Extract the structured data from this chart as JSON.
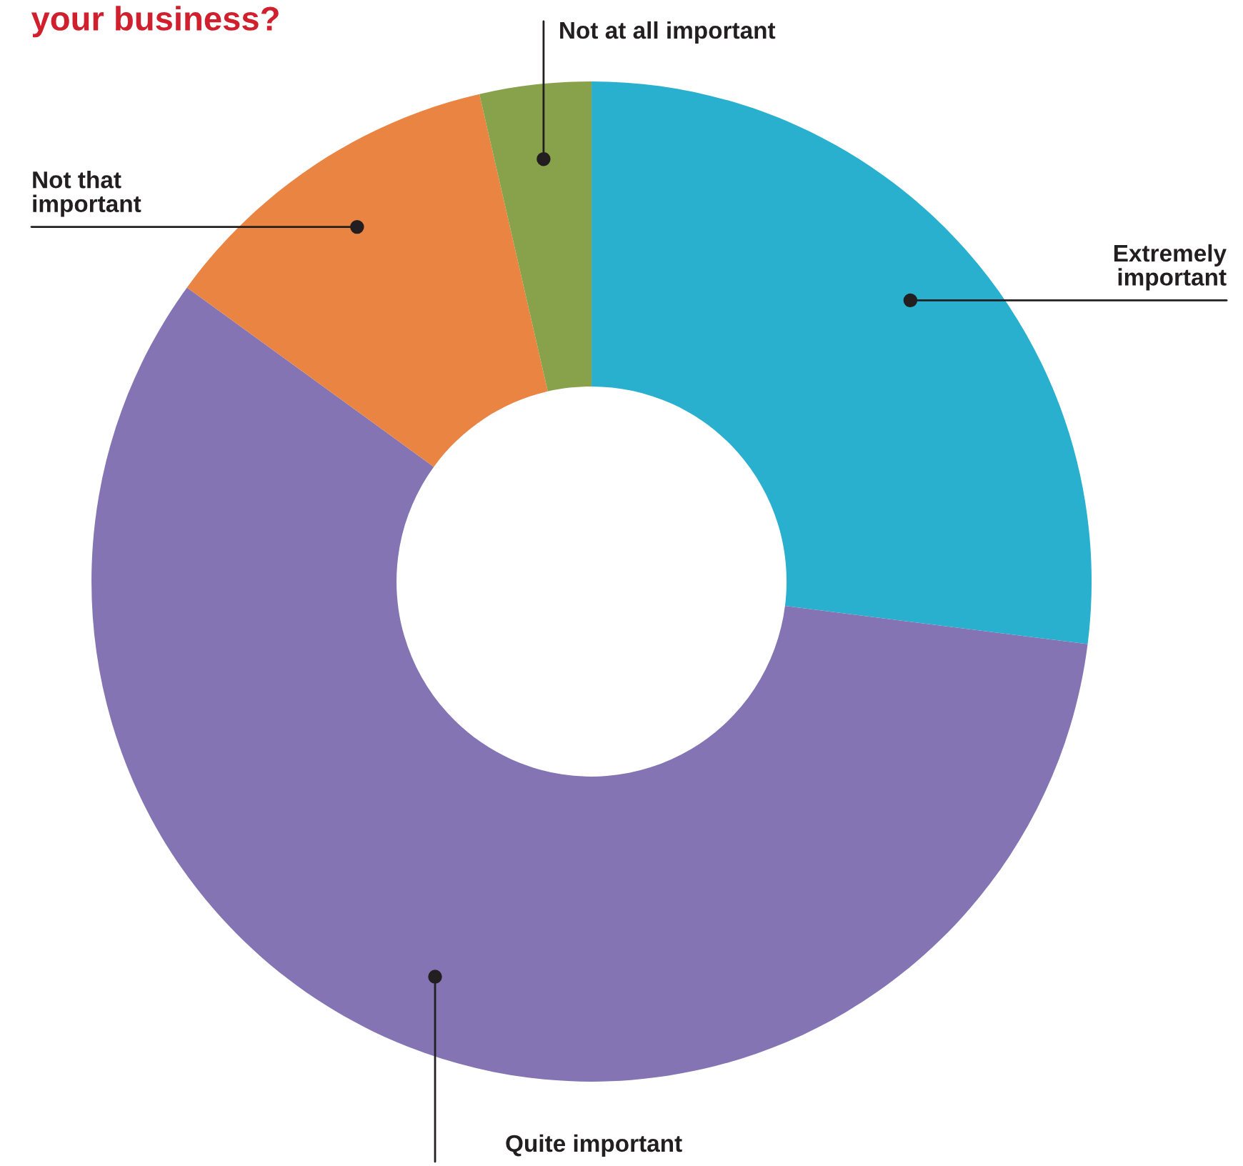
{
  "chart_data": {
    "type": "donut",
    "title": "your business?",
    "categories": [
      "Extremely important",
      "Quite important",
      "Not that important",
      "Not at all important"
    ],
    "values": [
      27,
      58,
      11.4,
      3.6
    ],
    "colors": [
      "#29b0cf",
      "#8474b4",
      "#e98443",
      "#88a24b"
    ]
  }
}
